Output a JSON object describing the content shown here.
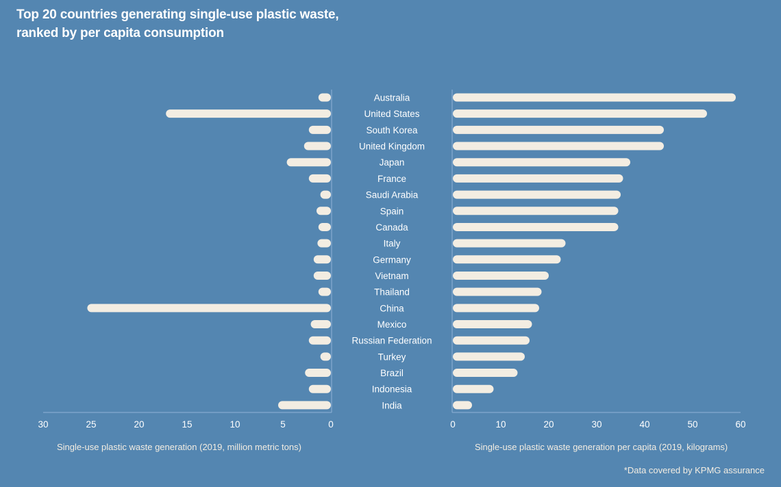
{
  "title": {
    "line1": "Top 20 countries generating single-use plastic waste,",
    "line2": "ranked by per capita consumption"
  },
  "colors": {
    "background": "#5486b1",
    "bar": "#f3ede2",
    "axis": "#8fb3d6",
    "text": "#ffffff"
  },
  "footnote": "*Data covered by KPMG assurance",
  "chart_data": {
    "type": "bar",
    "orientation": "horizontal",
    "layout": "butterfly",
    "title": "Top 20 countries generating single-use plastic waste, ranked by per capita consumption",
    "categories": [
      "Australia",
      "United States",
      "South Korea",
      "United Kingdom",
      "Japan",
      "France",
      "Saudi Arabia",
      "Spain",
      "Canada",
      "Italy",
      "Germany",
      "Vietnam",
      "Thailand",
      "China",
      "Mexico",
      "Russian Federation",
      "Turkey",
      "Brazil",
      "Indonesia",
      "India"
    ],
    "series": [
      {
        "name": "Single-use plastic waste generation (2019, million metric tons)",
        "side": "left",
        "values": [
          1.3,
          17.2,
          2.3,
          2.8,
          4.6,
          2.3,
          1.1,
          1.5,
          1.3,
          1.4,
          1.8,
          1.8,
          1.3,
          25.4,
          2.1,
          2.3,
          1.1,
          2.7,
          2.3,
          5.5
        ],
        "xlim": [
          0,
          30
        ],
        "ticks": [
          30,
          25,
          20,
          15,
          10,
          5,
          0
        ],
        "xlabel": "Single-use plastic waste generation (2019, million metric tons)"
      },
      {
        "name": "Single-use plastic waste generation per capita (2019, kilograms)",
        "side": "right",
        "values": [
          59,
          53,
          44,
          44,
          37,
          35.5,
          35,
          34.5,
          34.5,
          23.5,
          22.5,
          20,
          18.5,
          18,
          16.5,
          16,
          15,
          13.5,
          8.5,
          4
        ],
        "xlim": [
          0,
          60
        ],
        "ticks": [
          0,
          10,
          20,
          30,
          40,
          50,
          60
        ],
        "xlabel": "Single-use plastic waste generation per capita (2019, kilograms)"
      }
    ]
  }
}
